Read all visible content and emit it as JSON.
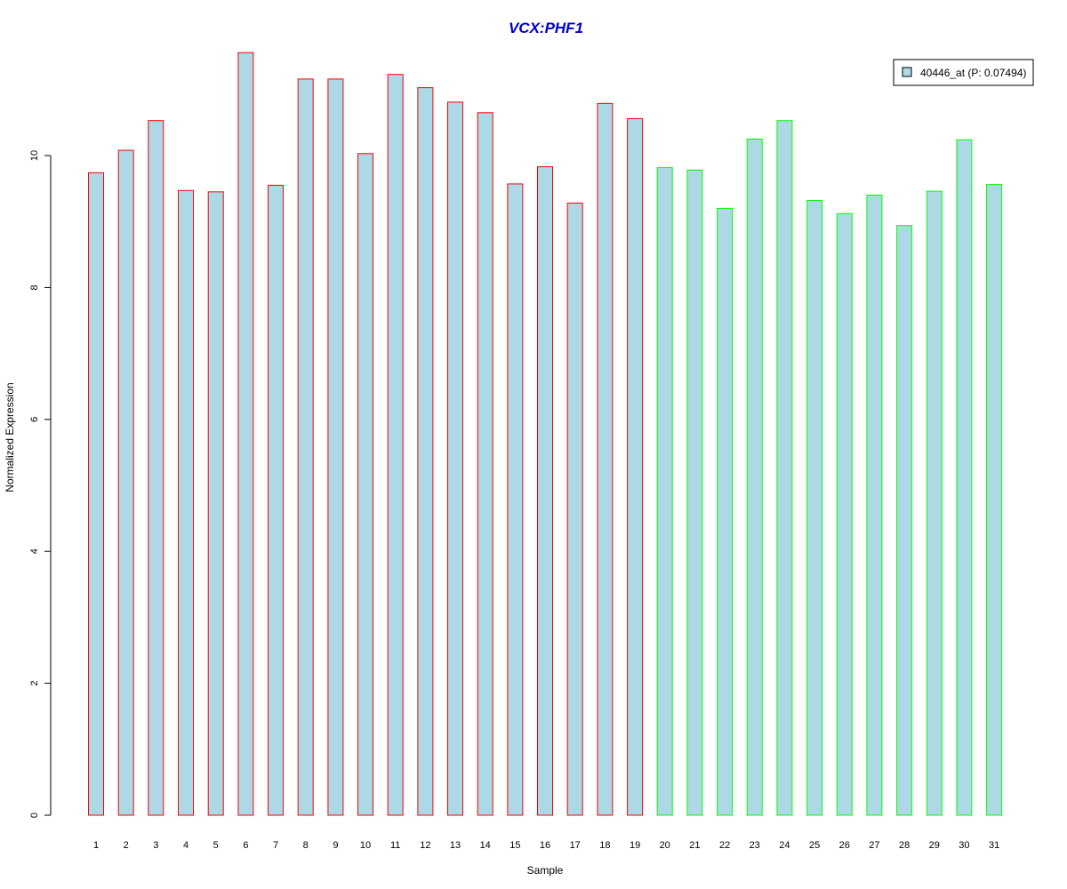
{
  "chart_data": {
    "type": "bar",
    "title": "VCX:PHF1",
    "xlabel": "Sample",
    "ylabel": "Normalized Expression",
    "categories": [
      "1",
      "2",
      "3",
      "4",
      "5",
      "6",
      "7",
      "8",
      "9",
      "10",
      "11",
      "12",
      "13",
      "14",
      "15",
      "16",
      "17",
      "18",
      "19",
      "20",
      "21",
      "22",
      "23",
      "24",
      "25",
      "26",
      "27",
      "28",
      "29",
      "30",
      "31"
    ],
    "series": [
      {
        "name": "40446_at (P: 0.07494)",
        "values": [
          9.74,
          10.08,
          10.53,
          9.47,
          9.45,
          11.56,
          9.55,
          11.16,
          11.16,
          10.03,
          11.23,
          11.03,
          10.81,
          10.65,
          9.57,
          9.83,
          9.28,
          10.79,
          10.56,
          9.82,
          9.78,
          9.2,
          10.25,
          10.53,
          9.32,
          9.12,
          9.4,
          8.94,
          9.46,
          10.24,
          9.56
        ],
        "fill_color": "#add8e6"
      }
    ],
    "bar_outline_colors": [
      "#ff0000",
      "#ff0000",
      "#ff0000",
      "#ff0000",
      "#ff0000",
      "#ff0000",
      "#ff0000",
      "#ff0000",
      "#ff0000",
      "#ff0000",
      "#ff0000",
      "#ff0000",
      "#ff0000",
      "#ff0000",
      "#ff0000",
      "#ff0000",
      "#ff0000",
      "#ff0000",
      "#ff0000",
      "#00ff00",
      "#00ff00",
      "#00ff00",
      "#00ff00",
      "#00ff00",
      "#00ff00",
      "#00ff00",
      "#00ff00",
      "#00ff00",
      "#00ff00",
      "#00ff00",
      "#00ff00"
    ],
    "yticks": [
      0,
      2,
      4,
      6,
      8,
      10
    ],
    "ylim": [
      0,
      11.56
    ],
    "grid": false,
    "legend_position": "top-right",
    "title_color": "#0000cc"
  }
}
